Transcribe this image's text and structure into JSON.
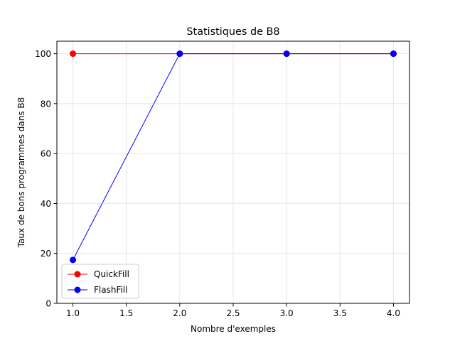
{
  "chart_data": {
    "type": "line",
    "title": "Statistiques de B8",
    "xlabel": "Nombre d'exemples",
    "ylabel": "Taux de bons programmes dans B8",
    "xlim": [
      0.85,
      4.15
    ],
    "ylim": [
      0,
      105
    ],
    "xticks": [
      1.0,
      1.5,
      2.0,
      2.5,
      3.0,
      3.5,
      4.0
    ],
    "xtick_labels": [
      "1.0",
      "1.5",
      "2.0",
      "2.5",
      "3.0",
      "3.5",
      "4.0"
    ],
    "yticks": [
      0,
      20,
      40,
      60,
      80,
      100
    ],
    "ytick_labels": [
      "0",
      "20",
      "40",
      "60",
      "80",
      "100"
    ],
    "grid": true,
    "legend_position": "lower-left",
    "series": [
      {
        "name": "QuickFill",
        "color": "#ff0000",
        "marker": "circle",
        "x": [
          1,
          2,
          3,
          4
        ],
        "y": [
          100,
          100,
          100,
          100
        ]
      },
      {
        "name": "FlashFill",
        "color": "#0000ff",
        "marker": "circle",
        "x": [
          1,
          2,
          3,
          4
        ],
        "y": [
          17.4,
          100,
          100,
          100
        ]
      }
    ]
  }
}
